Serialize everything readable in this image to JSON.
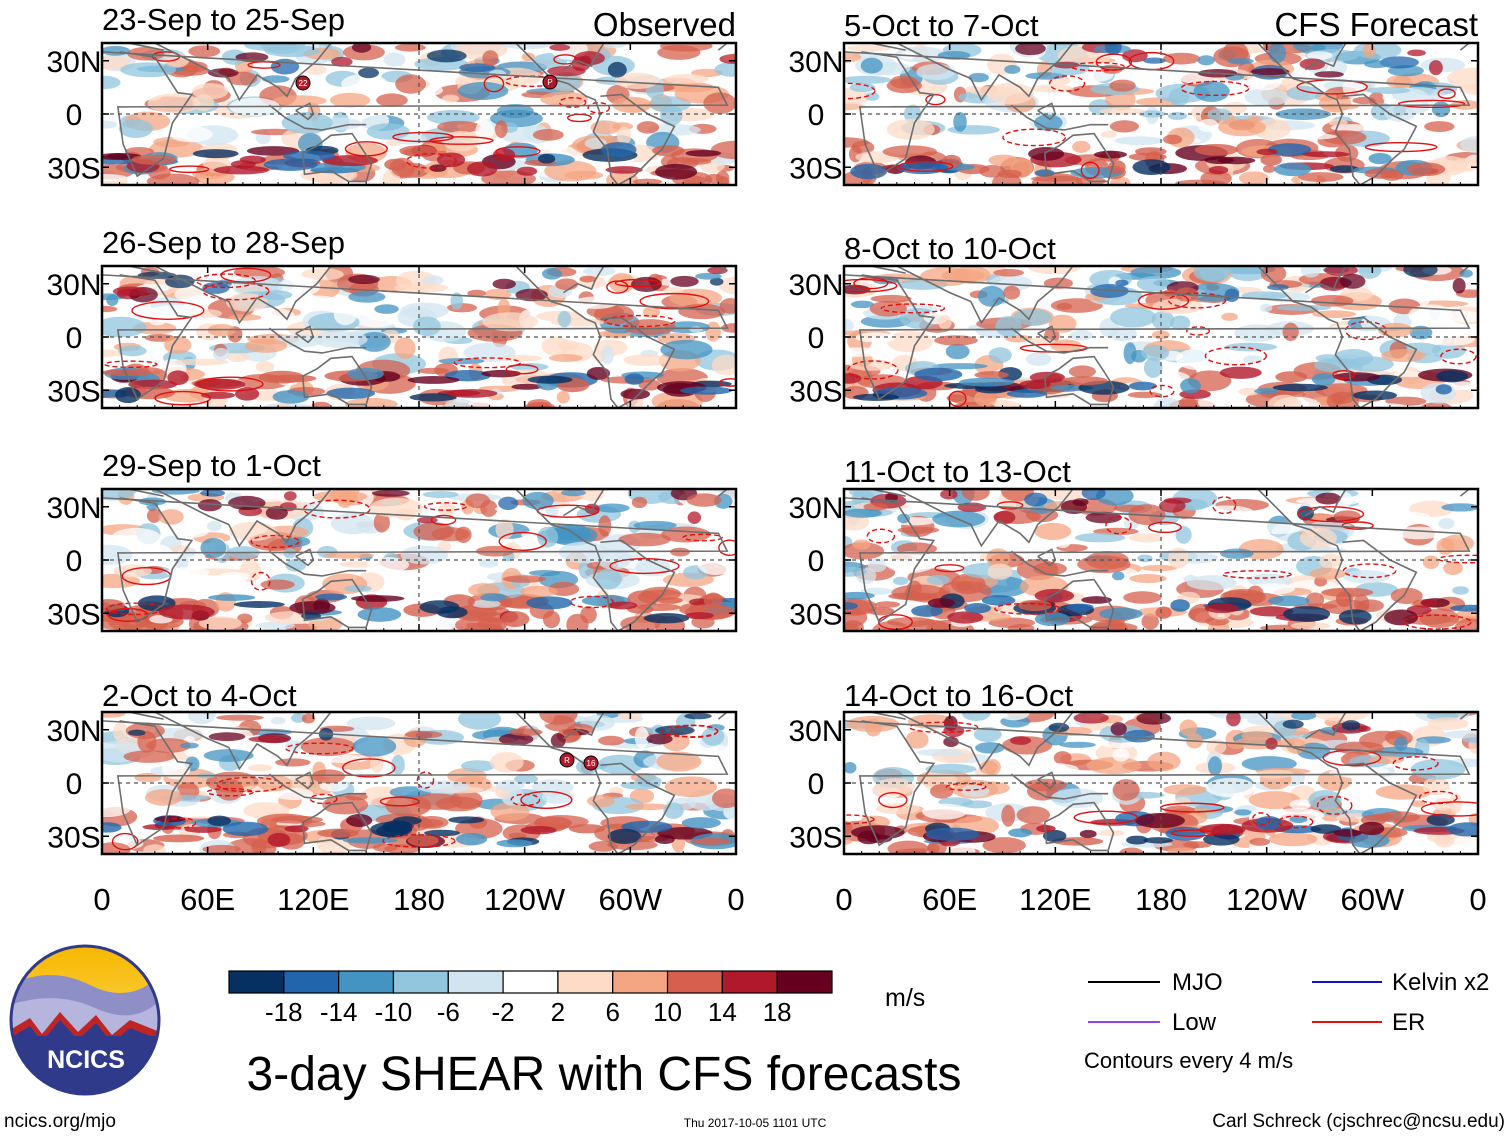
{
  "chart_data": {
    "type": "heatmap",
    "title": "3-day SHEAR with CFS forecasts",
    "observed_label": "Observed",
    "forecast_label": "CFS Forecast",
    "panels_observed": [
      {
        "period": "23-Sep to 25-Sep",
        "storm_markers": [
          "22",
          "P"
        ]
      },
      {
        "period": "26-Sep to 28-Sep",
        "storm_markers": []
      },
      {
        "period": "29-Sep to 1-Oct",
        "storm_markers": []
      },
      {
        "period": "2-Oct to 4-Oct",
        "storm_markers": [
          "R",
          "16"
        ]
      }
    ],
    "panels_forecast": [
      {
        "period": "5-Oct to 7-Oct"
      },
      {
        "period": "8-Oct to 10-Oct"
      },
      {
        "period": "11-Oct to 13-Oct"
      },
      {
        "period": "14-Oct to 16-Oct"
      }
    ],
    "y_ticks": [
      "30N",
      "0",
      "30S"
    ],
    "y_tick_values": [
      30,
      0,
      -30
    ],
    "x_ticks": [
      "0",
      "60E",
      "120E",
      "180",
      "120W",
      "60W",
      "0"
    ],
    "x_tick_values": [
      0,
      60,
      120,
      180,
      240,
      300,
      360
    ],
    "lon_range": [
      0,
      360
    ],
    "lat_range": [
      -40,
      40
    ],
    "colorbar": {
      "unit": "m/s",
      "tick_labels": [
        "-18",
        "-14",
        "-10",
        "-6",
        "-2",
        "2",
        "6",
        "10",
        "14",
        "18"
      ],
      "colors": [
        "#053061",
        "#2166ac",
        "#4393c3",
        "#92c5de",
        "#d1e5f0",
        "#ffffff",
        "#fddbc7",
        "#f4a582",
        "#d6604d",
        "#b2182b",
        "#67001f"
      ]
    },
    "legend": [
      {
        "label": "MJO",
        "color": "#000000"
      },
      {
        "label": "Low",
        "color": "#a040e0"
      },
      {
        "label": "Kelvin x2",
        "color": "#1010d0"
      },
      {
        "label": "ER",
        "color": "#e01010"
      }
    ],
    "contour_note": "Contours every 4 m/s"
  },
  "footer": {
    "site": "ncics.org/mjo",
    "timestamp": "Thu 2017-10-05 1101 UTC",
    "credit": "Carl Schreck (cjschrec@ncsu.edu)"
  },
  "logo": {
    "text": "NCICS"
  }
}
